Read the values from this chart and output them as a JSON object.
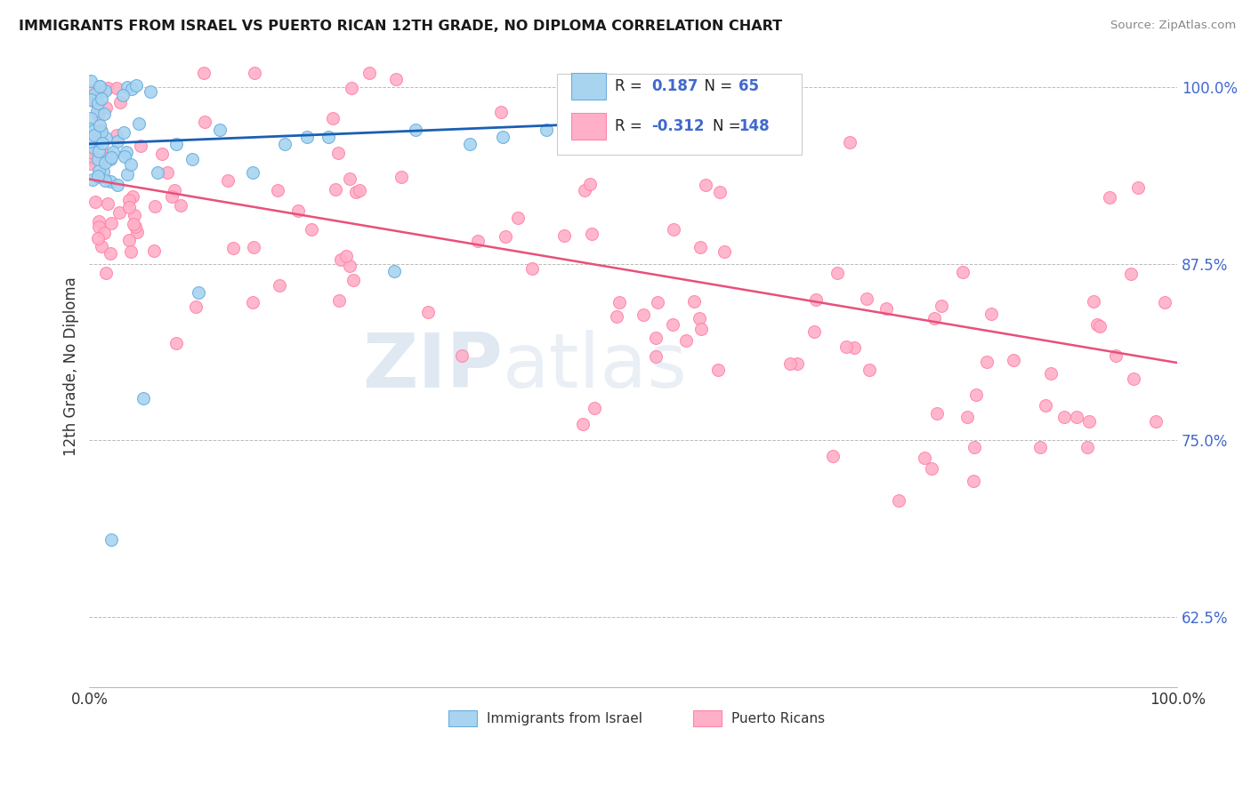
{
  "title": "IMMIGRANTS FROM ISRAEL VS PUERTO RICAN 12TH GRADE, NO DIPLOMA CORRELATION CHART",
  "source": "Source: ZipAtlas.com",
  "ylabel": "12th Grade, No Diploma",
  "xlim": [
    0.0,
    1.0
  ],
  "ylim": [
    0.575,
    1.03
  ],
  "ytick_labels": [
    "62.5%",
    "75.0%",
    "87.5%",
    "100.0%"
  ],
  "ytick_values": [
    0.625,
    0.75,
    0.875,
    1.0
  ],
  "xtick_labels": [
    "0.0%",
    "100.0%"
  ],
  "xtick_values": [
    0.0,
    1.0
  ],
  "color_blue_fill": "#A8D4F0",
  "color_blue_edge": "#6AAEE0",
  "color_pink_fill": "#FFB0C8",
  "color_pink_edge": "#FF85A8",
  "color_line_blue": "#1A5FB4",
  "color_line_pink": "#E8507A",
  "color_ytick": "#4169CD",
  "watermark_zip": "ZIP",
  "watermark_atlas": "atlas",
  "legend_text1": "R =   0.187   N =   65",
  "legend_text2": "R = -0.312   N = 148",
  "bottom_legend1": "Immigrants from Israel",
  "bottom_legend2": "Puerto Ricans"
}
